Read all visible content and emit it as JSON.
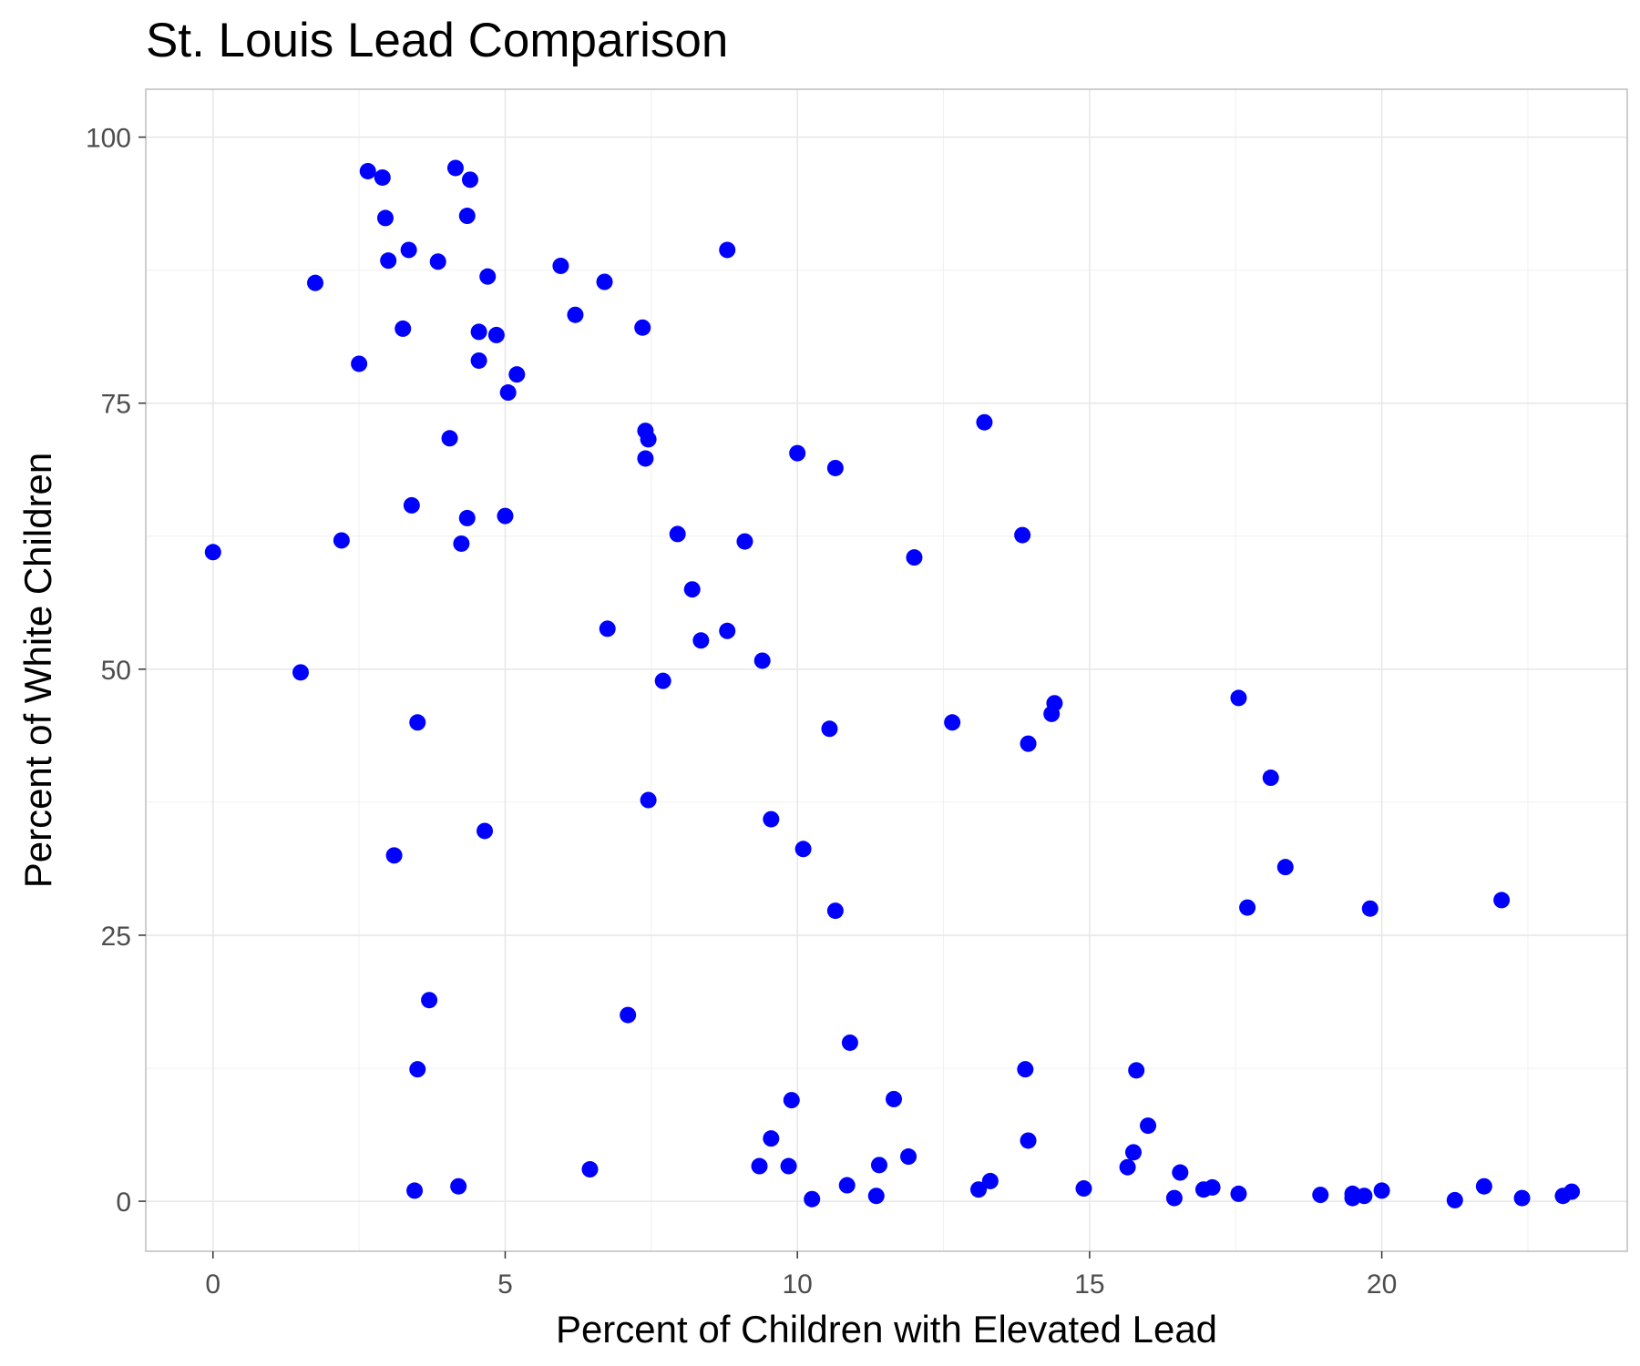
{
  "chart_data": {
    "type": "scatter",
    "title": "St. Louis Lead Comparison",
    "xlabel": "Percent of Children with Elevated Lead",
    "ylabel": "Percent of White Children",
    "xlim": [
      -1.15,
      24.2
    ],
    "ylim": [
      -4.7,
      104.5
    ],
    "xticks": [
      0,
      5,
      10,
      15,
      20
    ],
    "yticks": [
      0,
      25,
      50,
      75,
      100
    ],
    "xtick_labels": [
      "0",
      "5",
      "10",
      "15",
      "20"
    ],
    "ytick_labels": [
      "0",
      "25",
      "50",
      "75",
      "100"
    ],
    "grid": true,
    "legend": "none",
    "point_color": "#0000ff",
    "points": [
      [
        0.0,
        61.0
      ],
      [
        1.5,
        49.7
      ],
      [
        1.75,
        86.3
      ],
      [
        2.2,
        62.1
      ],
      [
        2.5,
        78.7
      ],
      [
        2.65,
        96.8
      ],
      [
        2.9,
        96.2
      ],
      [
        2.95,
        92.4
      ],
      [
        3.0,
        88.4
      ],
      [
        3.1,
        32.5
      ],
      [
        3.25,
        82.0
      ],
      [
        3.35,
        89.4
      ],
      [
        3.4,
        65.4
      ],
      [
        3.45,
        1.0
      ],
      [
        3.5,
        12.4
      ],
      [
        3.5,
        45.0
      ],
      [
        3.7,
        18.9
      ],
      [
        3.85,
        88.3
      ],
      [
        4.05,
        71.7
      ],
      [
        4.15,
        97.1
      ],
      [
        4.2,
        1.4
      ],
      [
        4.25,
        61.8
      ],
      [
        4.35,
        64.2
      ],
      [
        4.35,
        92.6
      ],
      [
        4.4,
        96.0
      ],
      [
        4.55,
        79.0
      ],
      [
        4.55,
        81.7
      ],
      [
        4.65,
        34.8
      ],
      [
        4.7,
        86.9
      ],
      [
        4.85,
        81.4
      ],
      [
        5.0,
        64.4
      ],
      [
        5.05,
        76.0
      ],
      [
        5.2,
        77.7
      ],
      [
        5.95,
        87.9
      ],
      [
        6.2,
        83.3
      ],
      [
        6.45,
        3.0
      ],
      [
        6.7,
        86.4
      ],
      [
        6.75,
        53.8
      ],
      [
        7.1,
        17.5
      ],
      [
        7.35,
        82.1
      ],
      [
        7.4,
        72.4
      ],
      [
        7.4,
        69.8
      ],
      [
        7.45,
        71.6
      ],
      [
        7.45,
        37.7
      ],
      [
        7.7,
        48.9
      ],
      [
        7.95,
        62.7
      ],
      [
        8.2,
        57.5
      ],
      [
        8.35,
        52.7
      ],
      [
        8.8,
        53.6
      ],
      [
        8.8,
        89.4
      ],
      [
        9.1,
        62.0
      ],
      [
        9.35,
        3.3
      ],
      [
        9.4,
        50.8
      ],
      [
        9.55,
        35.9
      ],
      [
        9.55,
        5.9
      ],
      [
        9.85,
        3.3
      ],
      [
        9.9,
        9.5
      ],
      [
        10.0,
        70.3
      ],
      [
        10.1,
        33.1
      ],
      [
        10.25,
        0.2
      ],
      [
        10.55,
        44.4
      ],
      [
        10.65,
        68.9
      ],
      [
        10.65,
        27.3
      ],
      [
        10.85,
        1.5
      ],
      [
        10.9,
        14.9
      ],
      [
        11.35,
        0.5
      ],
      [
        11.4,
        3.4
      ],
      [
        11.65,
        9.6
      ],
      [
        11.9,
        4.2
      ],
      [
        12.0,
        60.5
      ],
      [
        12.65,
        45.0
      ],
      [
        13.1,
        1.1
      ],
      [
        13.2,
        73.2
      ],
      [
        13.3,
        1.9
      ],
      [
        13.85,
        62.6
      ],
      [
        13.9,
        12.4
      ],
      [
        13.95,
        43.0
      ],
      [
        13.95,
        5.7
      ],
      [
        14.35,
        45.8
      ],
      [
        14.4,
        46.8
      ],
      [
        14.9,
        1.2
      ],
      [
        15.65,
        3.2
      ],
      [
        15.75,
        4.6
      ],
      [
        15.8,
        12.3
      ],
      [
        16.0,
        7.1
      ],
      [
        16.45,
        0.3
      ],
      [
        16.55,
        2.7
      ],
      [
        16.95,
        1.1
      ],
      [
        17.1,
        1.3
      ],
      [
        17.55,
        47.3
      ],
      [
        17.55,
        0.7
      ],
      [
        17.7,
        27.6
      ],
      [
        18.1,
        39.8
      ],
      [
        18.35,
        31.4
      ],
      [
        18.95,
        0.6
      ],
      [
        19.5,
        0.7
      ],
      [
        19.5,
        0.3
      ],
      [
        19.7,
        0.5
      ],
      [
        19.8,
        27.5
      ],
      [
        20.0,
        1.0
      ],
      [
        21.25,
        0.1
      ],
      [
        21.75,
        1.4
      ],
      [
        22.05,
        28.3
      ],
      [
        22.4,
        0.3
      ],
      [
        23.1,
        0.5
      ],
      [
        23.25,
        0.9
      ]
    ]
  }
}
